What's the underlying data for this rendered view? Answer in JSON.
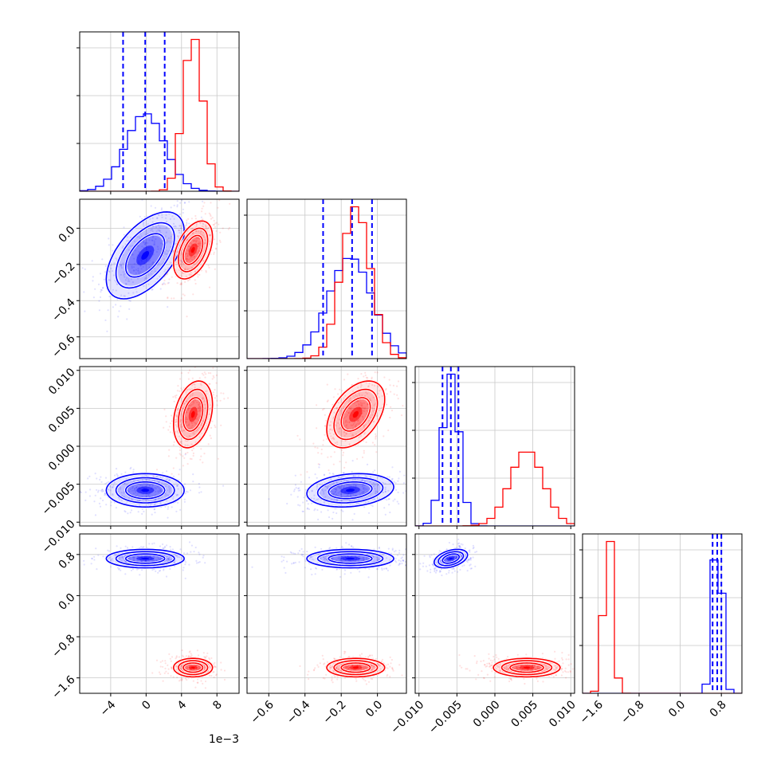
{
  "chart_data": {
    "type": "corner",
    "x_scale_offset_text": "1e−3",
    "grid": true,
    "series": [
      {
        "name": "",
        "color": "#0000ff",
        "quantiles": [
          0.16,
          0.5,
          0.84
        ]
      },
      {
        "name": "",
        "color": "#ff0000"
      }
    ],
    "params": [
      {
        "xlim": [
          -0.0075,
          0.0105
        ],
        "ticks": [
          -0.004,
          0.0,
          0.004,
          0.008
        ],
        "tick_labels": [
          "−4",
          "0",
          "4",
          "8"
        ],
        "blue": {
          "mean": -0.0001,
          "std": 0.0022
        },
        "red": {
          "mean": 0.0053,
          "std": 0.0011
        }
      },
      {
        "xlim": [
          -0.72,
          0.16
        ],
        "ticks": [
          -0.6,
          -0.4,
          -0.2,
          0.0
        ],
        "tick_labels": [
          "−0.6",
          "−0.4",
          "−0.2",
          "0.0"
        ],
        "blue": {
          "mean": -0.15,
          "std": 0.12
        },
        "red": {
          "mean": -0.12,
          "std": 0.08
        }
      },
      {
        "xlim": [
          -0.0105,
          0.0105
        ],
        "ticks": [
          -0.01,
          -0.005,
          0.0,
          0.005,
          0.01
        ],
        "tick_labels": [
          "−0.010",
          "−0.005",
          "0.000",
          "0.005",
          "0.010"
        ],
        "blue": {
          "mean": -0.0058,
          "std": 0.0011
        },
        "red": {
          "mean": 0.0042,
          "std": 0.0022
        }
      },
      {
        "xlim": [
          -1.9,
          1.2
        ],
        "ticks": [
          -1.6,
          -0.8,
          0.0,
          0.8
        ],
        "tick_labels": [
          "−1.6",
          "−0.8",
          "0.0",
          "0.8"
        ],
        "blue": {
          "mean": 0.72,
          "std": 0.09
        },
        "red": {
          "mean": -1.4,
          "std": 0.09
        }
      }
    ],
    "blue_quantile_lines": [
      [
        -0.0026,
        -0.0001,
        0.0021
      ],
      [
        -0.3,
        -0.14,
        -0.03
      ],
      [
        -0.0069,
        -0.0058,
        -0.0048
      ],
      [
        0.63,
        0.72,
        0.8
      ]
    ],
    "correlations": {
      "blue": {
        "1-0": 0.55,
        "2-0": 0.0,
        "2-1": 0.2,
        "3-0": 0.0,
        "3-1": 0.0,
        "3-2": 0.4
      },
      "red": {
        "1-0": 0.45,
        "2-0": 0.3,
        "2-1": 0.45,
        "3-0": 0.0,
        "3-1": 0.0,
        "3-2": 0.0
      }
    }
  }
}
